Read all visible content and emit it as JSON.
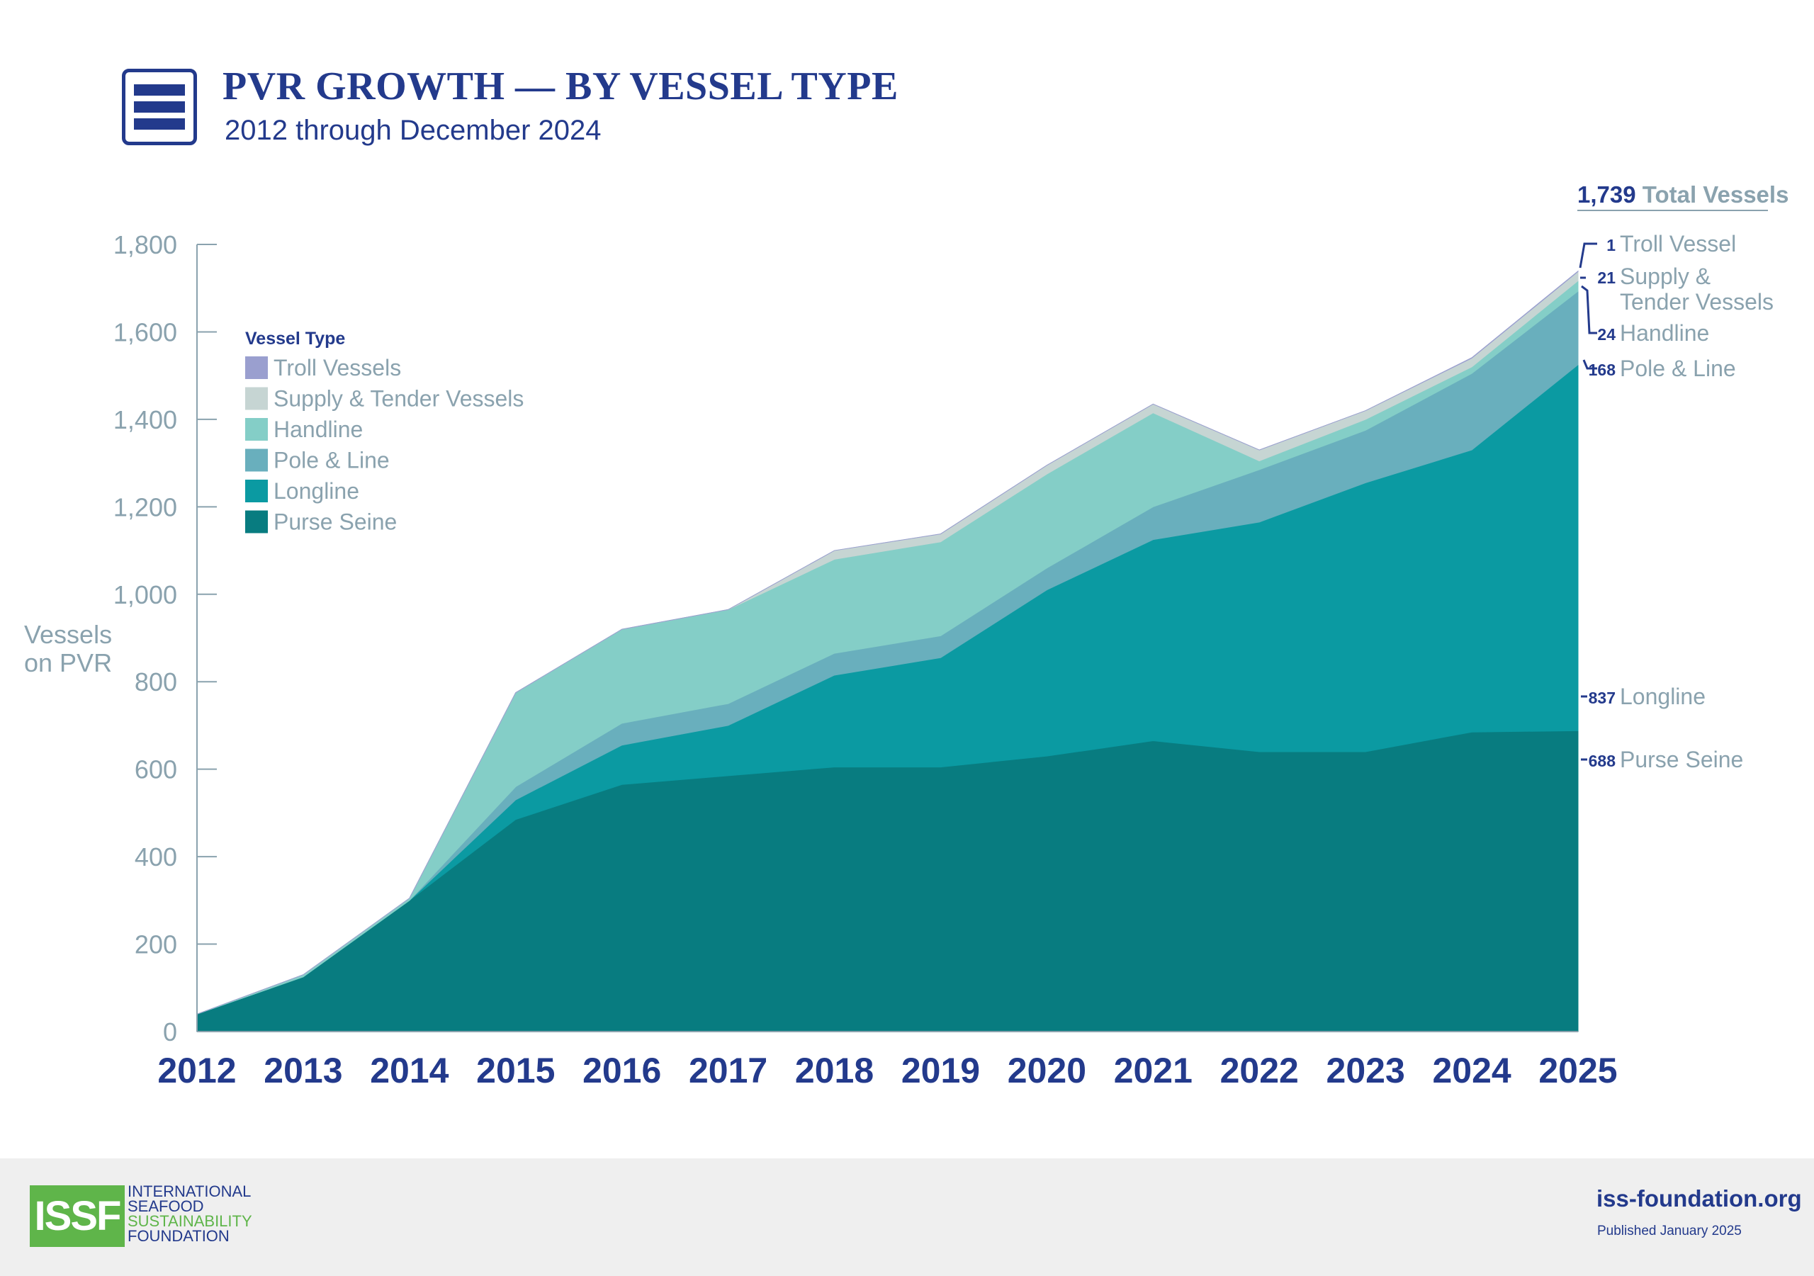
{
  "header": {
    "icon": "menu-bars-icon",
    "title": "PVR GROWTH — BY VESSEL TYPE",
    "subtitle": "2012 through December 2024"
  },
  "chart_data": {
    "type": "area",
    "stacked": true,
    "ylabel": "Vessels\non PVR",
    "xlabel": "",
    "ylim": [
      0,
      1800
    ],
    "yticks": [
      0,
      200,
      400,
      600,
      800,
      1000,
      1200,
      1400,
      1600,
      1800
    ],
    "x": [
      "2012",
      "2013",
      "2014",
      "2015",
      "2016",
      "2017",
      "2018",
      "2019",
      "2020",
      "2021",
      "2022",
      "2023",
      "2024",
      "2025"
    ],
    "legend_title": "Vessel Type",
    "legend_position": "top-left",
    "legend": [
      "Troll Vessels",
      "Supply & Tender Vessels",
      "Handline",
      "Pole & Line",
      "Longline",
      "Purse Seine"
    ],
    "series": [
      {
        "name": "Purse Seine",
        "color": "#087c80",
        "values": [
          40,
          125,
          300,
          485,
          565,
          585,
          605,
          605,
          630,
          665,
          640,
          640,
          685,
          688
        ]
      },
      {
        "name": "Longline",
        "color": "#0b9aa2",
        "values": [
          0,
          0,
          0,
          45,
          90,
          115,
          210,
          250,
          380,
          460,
          525,
          615,
          645,
          837
        ]
      },
      {
        "name": "Pole & Line",
        "color": "#69afbd",
        "values": [
          0,
          0,
          0,
          30,
          50,
          50,
          50,
          50,
          50,
          75,
          120,
          120,
          175,
          168
        ]
      },
      {
        "name": "Handline",
        "color": "#84cec7",
        "values": [
          0,
          5,
          5,
          215,
          215,
          215,
          215,
          215,
          215,
          215,
          20,
          25,
          15,
          24
        ]
      },
      {
        "name": "Supply & Tender Vessels",
        "color": "#c6d5d3",
        "values": [
          0,
          0,
          0,
          0,
          0,
          0,
          20,
          18,
          20,
          20,
          25,
          20,
          20,
          21
        ]
      },
      {
        "name": "Troll Vessels",
        "color": "#9a9fcf",
        "values": [
          0,
          0,
          0,
          0,
          0,
          0,
          0,
          0,
          0,
          0,
          0,
          0,
          1,
          1
        ]
      }
    ],
    "total": {
      "value": "1,739",
      "label": "Total Vessels"
    },
    "end_labels": [
      {
        "value": "1",
        "label": "Troll Vessel"
      },
      {
        "value": "21",
        "label": "Supply &\nTender Vessels"
      },
      {
        "value": "24",
        "label": "Handline"
      },
      {
        "value": "168",
        "label": "Pole & Line"
      },
      {
        "value": "837",
        "label": "Longline"
      },
      {
        "value": "688",
        "label": "Purse Seine"
      }
    ]
  },
  "footer": {
    "logo_mark": "ISSF",
    "logo_lines": [
      "INTERNATIONAL",
      "SEAFOOD",
      "SUSTAINABILITY",
      "FOUNDATION"
    ],
    "website": "iss-foundation.org",
    "published": "Published January 2025"
  },
  "colors": {
    "brand_blue": "#233a8c",
    "axis_gray": "#8aa2ae",
    "brand_green": "#5fb54a"
  }
}
